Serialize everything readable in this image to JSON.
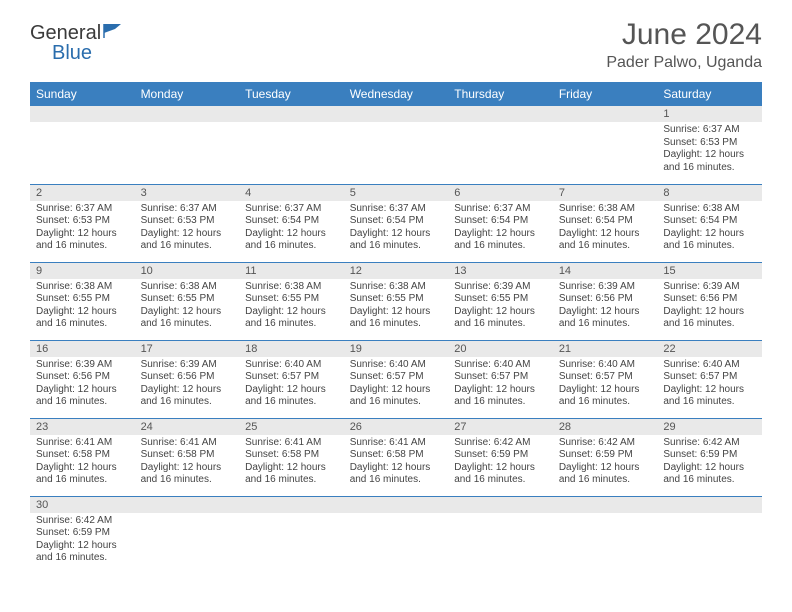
{
  "brand": {
    "general": "General",
    "blue": "Blue"
  },
  "title": "June 2024",
  "location": "Pader Palwo, Uganda",
  "colors": {
    "header_bg": "#3a7fbf",
    "header_text": "#ffffff",
    "daynum_bg": "#e9e9e9",
    "body_text": "#444444",
    "title_text": "#555555",
    "border": "#3a7fbf"
  },
  "weekdays": [
    "Sunday",
    "Monday",
    "Tuesday",
    "Wednesday",
    "Thursday",
    "Friday",
    "Saturday"
  ],
  "weeks": [
    [
      {
        "num": "",
        "sunrise": "",
        "sunset": "",
        "daylight": ""
      },
      {
        "num": "",
        "sunrise": "",
        "sunset": "",
        "daylight": ""
      },
      {
        "num": "",
        "sunrise": "",
        "sunset": "",
        "daylight": ""
      },
      {
        "num": "",
        "sunrise": "",
        "sunset": "",
        "daylight": ""
      },
      {
        "num": "",
        "sunrise": "",
        "sunset": "",
        "daylight": ""
      },
      {
        "num": "",
        "sunrise": "",
        "sunset": "",
        "daylight": ""
      },
      {
        "num": "1",
        "sunrise": "Sunrise: 6:37 AM",
        "sunset": "Sunset: 6:53 PM",
        "daylight": "Daylight: 12 hours and 16 minutes."
      }
    ],
    [
      {
        "num": "2",
        "sunrise": "Sunrise: 6:37 AM",
        "sunset": "Sunset: 6:53 PM",
        "daylight": "Daylight: 12 hours and 16 minutes."
      },
      {
        "num": "3",
        "sunrise": "Sunrise: 6:37 AM",
        "sunset": "Sunset: 6:53 PM",
        "daylight": "Daylight: 12 hours and 16 minutes."
      },
      {
        "num": "4",
        "sunrise": "Sunrise: 6:37 AM",
        "sunset": "Sunset: 6:54 PM",
        "daylight": "Daylight: 12 hours and 16 minutes."
      },
      {
        "num": "5",
        "sunrise": "Sunrise: 6:37 AM",
        "sunset": "Sunset: 6:54 PM",
        "daylight": "Daylight: 12 hours and 16 minutes."
      },
      {
        "num": "6",
        "sunrise": "Sunrise: 6:37 AM",
        "sunset": "Sunset: 6:54 PM",
        "daylight": "Daylight: 12 hours and 16 minutes."
      },
      {
        "num": "7",
        "sunrise": "Sunrise: 6:38 AM",
        "sunset": "Sunset: 6:54 PM",
        "daylight": "Daylight: 12 hours and 16 minutes."
      },
      {
        "num": "8",
        "sunrise": "Sunrise: 6:38 AM",
        "sunset": "Sunset: 6:54 PM",
        "daylight": "Daylight: 12 hours and 16 minutes."
      }
    ],
    [
      {
        "num": "9",
        "sunrise": "Sunrise: 6:38 AM",
        "sunset": "Sunset: 6:55 PM",
        "daylight": "Daylight: 12 hours and 16 minutes."
      },
      {
        "num": "10",
        "sunrise": "Sunrise: 6:38 AM",
        "sunset": "Sunset: 6:55 PM",
        "daylight": "Daylight: 12 hours and 16 minutes."
      },
      {
        "num": "11",
        "sunrise": "Sunrise: 6:38 AM",
        "sunset": "Sunset: 6:55 PM",
        "daylight": "Daylight: 12 hours and 16 minutes."
      },
      {
        "num": "12",
        "sunrise": "Sunrise: 6:38 AM",
        "sunset": "Sunset: 6:55 PM",
        "daylight": "Daylight: 12 hours and 16 minutes."
      },
      {
        "num": "13",
        "sunrise": "Sunrise: 6:39 AM",
        "sunset": "Sunset: 6:55 PM",
        "daylight": "Daylight: 12 hours and 16 minutes."
      },
      {
        "num": "14",
        "sunrise": "Sunrise: 6:39 AM",
        "sunset": "Sunset: 6:56 PM",
        "daylight": "Daylight: 12 hours and 16 minutes."
      },
      {
        "num": "15",
        "sunrise": "Sunrise: 6:39 AM",
        "sunset": "Sunset: 6:56 PM",
        "daylight": "Daylight: 12 hours and 16 minutes."
      }
    ],
    [
      {
        "num": "16",
        "sunrise": "Sunrise: 6:39 AM",
        "sunset": "Sunset: 6:56 PM",
        "daylight": "Daylight: 12 hours and 16 minutes."
      },
      {
        "num": "17",
        "sunrise": "Sunrise: 6:39 AM",
        "sunset": "Sunset: 6:56 PM",
        "daylight": "Daylight: 12 hours and 16 minutes."
      },
      {
        "num": "18",
        "sunrise": "Sunrise: 6:40 AM",
        "sunset": "Sunset: 6:57 PM",
        "daylight": "Daylight: 12 hours and 16 minutes."
      },
      {
        "num": "19",
        "sunrise": "Sunrise: 6:40 AM",
        "sunset": "Sunset: 6:57 PM",
        "daylight": "Daylight: 12 hours and 16 minutes."
      },
      {
        "num": "20",
        "sunrise": "Sunrise: 6:40 AM",
        "sunset": "Sunset: 6:57 PM",
        "daylight": "Daylight: 12 hours and 16 minutes."
      },
      {
        "num": "21",
        "sunrise": "Sunrise: 6:40 AM",
        "sunset": "Sunset: 6:57 PM",
        "daylight": "Daylight: 12 hours and 16 minutes."
      },
      {
        "num": "22",
        "sunrise": "Sunrise: 6:40 AM",
        "sunset": "Sunset: 6:57 PM",
        "daylight": "Daylight: 12 hours and 16 minutes."
      }
    ],
    [
      {
        "num": "23",
        "sunrise": "Sunrise: 6:41 AM",
        "sunset": "Sunset: 6:58 PM",
        "daylight": "Daylight: 12 hours and 16 minutes."
      },
      {
        "num": "24",
        "sunrise": "Sunrise: 6:41 AM",
        "sunset": "Sunset: 6:58 PM",
        "daylight": "Daylight: 12 hours and 16 minutes."
      },
      {
        "num": "25",
        "sunrise": "Sunrise: 6:41 AM",
        "sunset": "Sunset: 6:58 PM",
        "daylight": "Daylight: 12 hours and 16 minutes."
      },
      {
        "num": "26",
        "sunrise": "Sunrise: 6:41 AM",
        "sunset": "Sunset: 6:58 PM",
        "daylight": "Daylight: 12 hours and 16 minutes."
      },
      {
        "num": "27",
        "sunrise": "Sunrise: 6:42 AM",
        "sunset": "Sunset: 6:59 PM",
        "daylight": "Daylight: 12 hours and 16 minutes."
      },
      {
        "num": "28",
        "sunrise": "Sunrise: 6:42 AM",
        "sunset": "Sunset: 6:59 PM",
        "daylight": "Daylight: 12 hours and 16 minutes."
      },
      {
        "num": "29",
        "sunrise": "Sunrise: 6:42 AM",
        "sunset": "Sunset: 6:59 PM",
        "daylight": "Daylight: 12 hours and 16 minutes."
      }
    ],
    [
      {
        "num": "30",
        "sunrise": "Sunrise: 6:42 AM",
        "sunset": "Sunset: 6:59 PM",
        "daylight": "Daylight: 12 hours and 16 minutes."
      },
      {
        "num": "",
        "sunrise": "",
        "sunset": "",
        "daylight": ""
      },
      {
        "num": "",
        "sunrise": "",
        "sunset": "",
        "daylight": ""
      },
      {
        "num": "",
        "sunrise": "",
        "sunset": "",
        "daylight": ""
      },
      {
        "num": "",
        "sunrise": "",
        "sunset": "",
        "daylight": ""
      },
      {
        "num": "",
        "sunrise": "",
        "sunset": "",
        "daylight": ""
      },
      {
        "num": "",
        "sunrise": "",
        "sunset": "",
        "daylight": ""
      }
    ]
  ]
}
